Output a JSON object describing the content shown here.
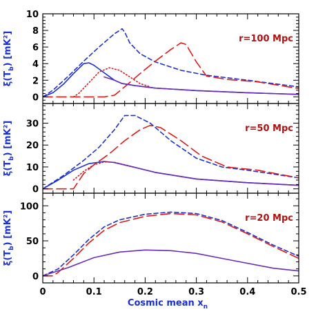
{
  "colors": {
    "blue": "#1a2fd6",
    "red": "#e01818",
    "purple": "#6a2ab8",
    "annotation": "#b01010"
  },
  "chart_data": {
    "type": "line",
    "xlabel_text": "Cosmic mean x",
    "xlabel_sub": "n",
    "xlim": [
      0,
      0.5
    ],
    "x_ticks": [
      "0",
      "0.1",
      "0.2",
      "0.3",
      "0.4",
      "0.5"
    ],
    "panels": [
      {
        "annotation": "r=100 Mpc",
        "ylabel_main": "ξ(T",
        "ylabel_sub": "b",
        "ylabel_end": ") [mK²]",
        "ylim": [
          -0.8,
          10
        ],
        "y_ticks": [
          0,
          2,
          4,
          6,
          8,
          10
        ],
        "series": [
          {
            "style": "solid",
            "color": "blue",
            "points": [
              [
                0,
                0
              ],
              [
                0.02,
                0.5
              ],
              [
                0.04,
                1.5
              ],
              [
                0.06,
                2.8
              ],
              [
                0.08,
                4.0
              ],
              [
                0.09,
                4.1
              ],
              [
                0.1,
                3.8
              ],
              [
                0.12,
                2.9
              ],
              [
                0.14,
                2.0
              ],
              [
                0.155,
                1.6
              ],
              [
                0.18,
                1.35
              ],
              [
                0.22,
                1.05
              ],
              [
                0.3,
                0.75
              ],
              [
                0.4,
                0.5
              ],
              [
                0.5,
                0.3
              ]
            ]
          },
          {
            "style": "dashed",
            "color": "blue",
            "points": [
              [
                0,
                0
              ],
              [
                0.02,
                0.8
              ],
              [
                0.05,
                2.5
              ],
              [
                0.08,
                4.3
              ],
              [
                0.11,
                6.0
              ],
              [
                0.14,
                7.6
              ],
              [
                0.155,
                8.2
              ],
              [
                0.16,
                7.8
              ],
              [
                0.17,
                6.5
              ],
              [
                0.19,
                5.2
              ],
              [
                0.22,
                4.2
              ],
              [
                0.27,
                3.2
              ],
              [
                0.32,
                2.6
              ],
              [
                0.4,
                2.0
              ],
              [
                0.5,
                1.2
              ]
            ]
          },
          {
            "style": "longdash",
            "color": "red",
            "points": [
              [
                0,
                0
              ],
              [
                0.03,
                0
              ],
              [
                0.06,
                0
              ],
              [
                0.09,
                0
              ],
              [
                0.12,
                0
              ],
              [
                0.14,
                0.2
              ],
              [
                0.16,
                1.2
              ],
              [
                0.19,
                2.8
              ],
              [
                0.22,
                4.3
              ],
              [
                0.25,
                5.7
              ],
              [
                0.27,
                6.5
              ],
              [
                0.28,
                6.3
              ],
              [
                0.3,
                4.2
              ],
              [
                0.32,
                2.5
              ],
              [
                0.36,
                2.1
              ],
              [
                0.42,
                1.8
              ],
              [
                0.5,
                1.0
              ]
            ]
          },
          {
            "style": "dotted",
            "color": "red",
            "points": [
              [
                0.06,
                0
              ],
              [
                0.07,
                0.4
              ],
              [
                0.09,
                1.7
              ],
              [
                0.11,
                3.0
              ],
              [
                0.13,
                3.5
              ],
              [
                0.15,
                3.2
              ],
              [
                0.17,
                2.4
              ],
              [
                0.19,
                1.6
              ],
              [
                0.21,
                1.2
              ]
            ]
          },
          {
            "style": "solid",
            "color": "purple",
            "points": [
              [
                0.12,
                2.4
              ],
              [
                0.14,
                2.0
              ],
              [
                0.155,
                1.6
              ],
              [
                0.18,
                1.35
              ],
              [
                0.22,
                1.05
              ],
              [
                0.3,
                0.75
              ],
              [
                0.4,
                0.5
              ],
              [
                0.5,
                0.3
              ]
            ]
          }
        ]
      },
      {
        "annotation": "r=50 Mpc",
        "ylabel_main": "ξ(T",
        "ylabel_sub": "b",
        "ylabel_end": ") [mK²]",
        "ylim": [
          -2,
          39
        ],
        "y_ticks": [
          0,
          10,
          20,
          30
        ],
        "series": [
          {
            "style": "solid",
            "color": "blue",
            "points": [
              [
                0,
                0
              ],
              [
                0.03,
                4
              ],
              [
                0.06,
                8.5
              ],
              [
                0.09,
                11.5
              ],
              [
                0.12,
                12.5
              ],
              [
                0.14,
                12.0
              ],
              [
                0.18,
                9.8
              ],
              [
                0.22,
                7.5
              ],
              [
                0.3,
                4.5
              ],
              [
                0.4,
                2.8
              ],
              [
                0.5,
                1.6
              ]
            ]
          },
          {
            "style": "dashed",
            "color": "blue",
            "points": [
              [
                0,
                0
              ],
              [
                0.04,
                6
              ],
              [
                0.08,
                13
              ],
              [
                0.11,
                19
              ],
              [
                0.14,
                27
              ],
              [
                0.16,
                33.5
              ],
              [
                0.18,
                33.5
              ],
              [
                0.21,
                30
              ],
              [
                0.25,
                22
              ],
              [
                0.3,
                14
              ],
              [
                0.35,
                10
              ],
              [
                0.4,
                8.5
              ],
              [
                0.5,
                5
              ]
            ]
          },
          {
            "style": "longdash",
            "color": "red",
            "points": [
              [
                0,
                0
              ],
              [
                0.03,
                0
              ],
              [
                0.06,
                0
              ],
              [
                0.08,
                7
              ],
              [
                0.1,
                11
              ],
              [
                0.13,
                16
              ],
              [
                0.16,
                22
              ],
              [
                0.19,
                27
              ],
              [
                0.21,
                29
              ],
              [
                0.23,
                28
              ],
              [
                0.27,
                22
              ],
              [
                0.31,
                15
              ],
              [
                0.36,
                10
              ],
              [
                0.42,
                8.5
              ],
              [
                0.5,
                5
              ]
            ]
          },
          {
            "style": "dotted",
            "color": "red",
            "points": [
              [
                0.06,
                4
              ],
              [
                0.08,
                8
              ],
              [
                0.1,
                11
              ],
              [
                0.12,
                12.3
              ],
              [
                0.14,
                12.1
              ],
              [
                0.16,
                11.0
              ],
              [
                0.18,
                9.8
              ]
            ]
          },
          {
            "style": "solid",
            "color": "purple",
            "points": [
              [
                0.14,
                12.0
              ],
              [
                0.18,
                9.8
              ],
              [
                0.22,
                7.5
              ],
              [
                0.3,
                4.5
              ],
              [
                0.4,
                2.8
              ],
              [
                0.5,
                1.6
              ]
            ]
          }
        ]
      },
      {
        "annotation": "r=20 Mpc",
        "ylabel_main": "ξ(T",
        "ylabel_sub": "b",
        "ylabel_end": ") [mK²]",
        "ylim": [
          -10,
          118
        ],
        "y_ticks": [
          0,
          50,
          100
        ],
        "series": [
          {
            "style": "dashed",
            "color": "blue",
            "points": [
              [
                0,
                0
              ],
              [
                0.03,
                10
              ],
              [
                0.06,
                30
              ],
              [
                0.09,
                52
              ],
              [
                0.12,
                70
              ],
              [
                0.15,
                80
              ],
              [
                0.2,
                88
              ],
              [
                0.25,
                91
              ],
              [
                0.3,
                89
              ],
              [
                0.35,
                79
              ],
              [
                0.4,
                62
              ],
              [
                0.45,
                44
              ],
              [
                0.5,
                28
              ]
            ]
          },
          {
            "style": "longdash",
            "color": "red",
            "points": [
              [
                0,
                0
              ],
              [
                0.02,
                0
              ],
              [
                0.03,
                5
              ],
              [
                0.06,
                25
              ],
              [
                0.09,
                47
              ],
              [
                0.12,
                65
              ],
              [
                0.15,
                76
              ],
              [
                0.2,
                85
              ],
              [
                0.25,
                89
              ],
              [
                0.3,
                87
              ],
              [
                0.35,
                77
              ],
              [
                0.4,
                60
              ],
              [
                0.45,
                42
              ],
              [
                0.5,
                25
              ]
            ]
          },
          {
            "style": "solid",
            "color": "purple",
            "points": [
              [
                0,
                0
              ],
              [
                0.05,
                12
              ],
              [
                0.1,
                26
              ],
              [
                0.15,
                34
              ],
              [
                0.2,
                37
              ],
              [
                0.25,
                36
              ],
              [
                0.3,
                32
              ],
              [
                0.35,
                25
              ],
              [
                0.4,
                18
              ],
              [
                0.45,
                11
              ],
              [
                0.5,
                7
              ]
            ]
          }
        ]
      }
    ]
  }
}
